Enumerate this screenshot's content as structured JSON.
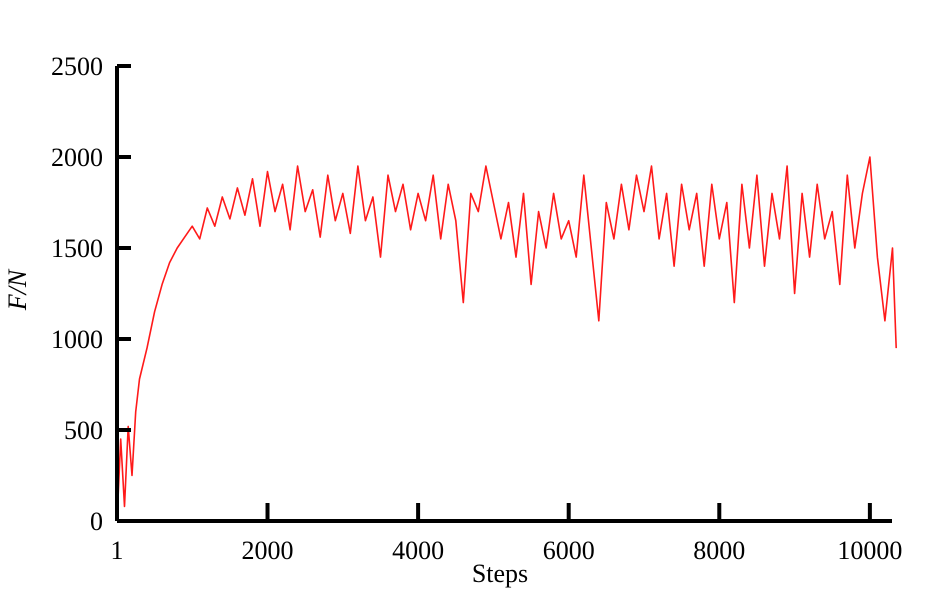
{
  "chart_data": {
    "type": "line",
    "x_label": "Steps",
    "y_label": "F/N",
    "xlim": [
      1,
      10400
    ],
    "ylim": [
      0,
      2500
    ],
    "xticks": [
      1,
      2000,
      4000,
      6000,
      8000,
      10000
    ],
    "yticks": [
      0,
      500,
      1000,
      1500,
      2000,
      2500
    ],
    "x": [
      1,
      50,
      100,
      150,
      200,
      250,
      300,
      400,
      500,
      600,
      700,
      800,
      900,
      1000,
      1100,
      1200,
      1300,
      1400,
      1500,
      1600,
      1700,
      1800,
      1900,
      2000,
      2100,
      2200,
      2300,
      2400,
      2500,
      2600,
      2700,
      2800,
      2900,
      3000,
      3100,
      3200,
      3300,
      3400,
      3500,
      3600,
      3700,
      3800,
      3900,
      4000,
      4100,
      4200,
      4300,
      4400,
      4500,
      4600,
      4700,
      4800,
      4900,
      5000,
      5100,
      5200,
      5300,
      5400,
      5500,
      5600,
      5700,
      5800,
      5900,
      6000,
      6100,
      6200,
      6300,
      6400,
      6500,
      6600,
      6700,
      6800,
      6900,
      7000,
      7100,
      7200,
      7300,
      7400,
      7500,
      7600,
      7700,
      7800,
      7900,
      8000,
      8100,
      8200,
      8300,
      8400,
      8500,
      8600,
      8700,
      8800,
      8900,
      9000,
      9100,
      9200,
      9300,
      9400,
      9500,
      9600,
      9700,
      9800,
      9900,
      10000,
      10100,
      10200,
      10300,
      10350
    ],
    "series": [
      {
        "color": "#ff1a1a",
        "values": [
          0,
          450,
          80,
          520,
          250,
          600,
          780,
          950,
          1150,
          1300,
          1420,
          1500,
          1560,
          1620,
          1550,
          1720,
          1620,
          1780,
          1660,
          1830,
          1680,
          1880,
          1620,
          1920,
          1700,
          1850,
          1600,
          1950,
          1700,
          1820,
          1560,
          1900,
          1650,
          1800,
          1580,
          1950,
          1650,
          1780,
          1450,
          1900,
          1700,
          1850,
          1600,
          1800,
          1650,
          1900,
          1550,
          1850,
          1650,
          1200,
          1800,
          1700,
          1950,
          1750,
          1550,
          1750,
          1450,
          1800,
          1300,
          1700,
          1500,
          1800,
          1550,
          1650,
          1450,
          1900,
          1500,
          1100,
          1750,
          1550,
          1850,
          1600,
          1900,
          1700,
          1950,
          1550,
          1800,
          1400,
          1850,
          1600,
          1800,
          1400,
          1850,
          1550,
          1750,
          1200,
          1850,
          1500,
          1900,
          1400,
          1800,
          1550,
          1950,
          1250,
          1800,
          1450,
          1850,
          1550,
          1700,
          1300,
          1900,
          1500,
          1800,
          2000,
          1450,
          1100,
          1500,
          950
        ]
      }
    ]
  }
}
